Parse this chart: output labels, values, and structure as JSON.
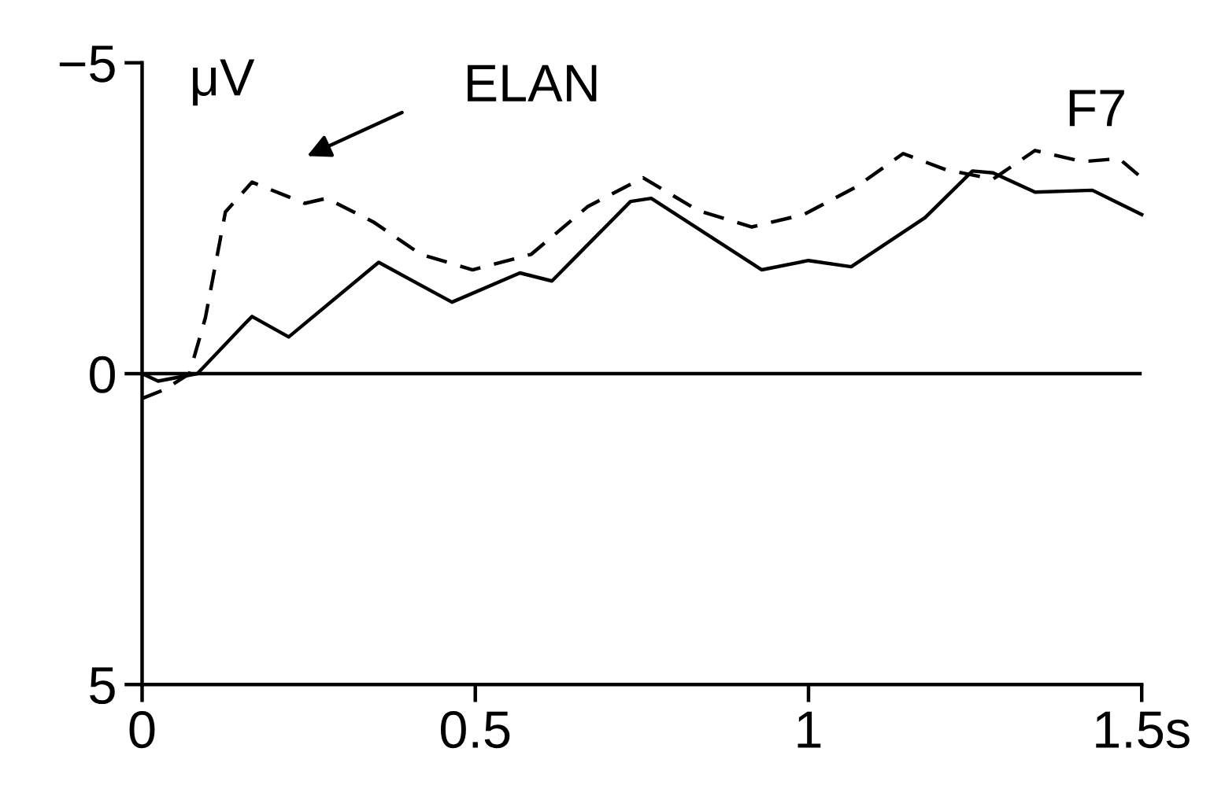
{
  "chart_data": {
    "type": "line",
    "ylabel": "μV",
    "x": [
      0,
      0.024,
      0.083,
      0.154,
      0.165,
      0.22,
      0.355,
      0.465,
      0.567,
      0.615,
      0.733,
      0.764,
      0.93,
      1.0,
      1.064,
      1.175,
      1.246,
      1.277,
      1.34,
      1.426,
      1.5
    ],
    "series": [
      {
        "color": "#000000",
        "line_style": "solid",
        "values": [
          0,
          0.12,
          0,
          -0.8,
          -0.92,
          -0.59,
          -1.79,
          -1.15,
          -1.62,
          -1.49,
          -2.77,
          -2.82,
          -1.67,
          -1.82,
          -1.72,
          -2.51,
          -3.26,
          -3.23,
          -2.92,
          -2.95,
          -2.56
        ]
      },
      {
        "color": "#000000",
        "line_style": "dashed",
        "x": [
          0,
          0.035,
          0.071,
          0.095,
          0.125,
          0.165,
          0.244,
          0.277,
          0.347,
          0.418,
          0.496,
          0.584,
          0.669,
          0.752,
          0.835,
          0.915,
          0.993,
          1.071,
          1.142,
          1.206,
          1.277,
          1.34,
          1.411,
          1.466,
          1.5
        ],
        "values": [
          0.4,
          0.25,
          0,
          -0.9,
          -2.6,
          -3.08,
          -2.74,
          -2.82,
          -2.44,
          -1.92,
          -1.67,
          -1.92,
          -2.69,
          -3.15,
          -2.62,
          -2.36,
          -2.56,
          -3.0,
          -3.54,
          -3.28,
          -3.13,
          -3.59,
          -3.41,
          -3.46,
          -3.15
        ]
      }
    ],
    "xlim": [
      0,
      1.5
    ],
    "xticks": [
      0,
      0.5,
      1,
      {
        "value": 1.5,
        "label": "1.5s"
      }
    ],
    "ylim": [
      5,
      -5
    ],
    "yticks": [
      {
        "value": -5,
        "label": "−5"
      },
      0,
      5
    ],
    "ref_lines": [
      {
        "axis": "y",
        "value": 0,
        "color": "#000000"
      }
    ],
    "annotations": [
      "ELAN",
      "F7"
    ],
    "grid": false,
    "legend": false
  }
}
